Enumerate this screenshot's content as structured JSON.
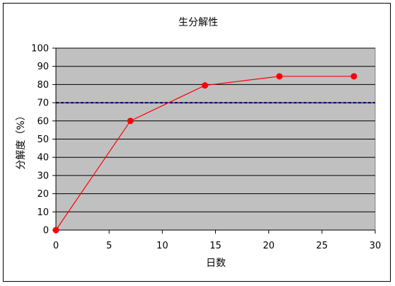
{
  "chart_data": {
    "type": "line",
    "title": "生分解性",
    "xlabel": "日数",
    "ylabel": "分解度（%）",
    "xlim": [
      0,
      30
    ],
    "ylim": [
      0,
      100
    ],
    "x_ticks": [
      0,
      5,
      10,
      15,
      20,
      25,
      30
    ],
    "y_ticks": [
      0,
      10,
      20,
      30,
      40,
      50,
      60,
      70,
      80,
      90,
      100
    ],
    "grid": true,
    "legend": "none",
    "plot_background": "#c0c0c0",
    "series": [
      {
        "x": [
          0,
          7,
          14,
          21,
          28
        ],
        "y": [
          0,
          60,
          79.5,
          84.5,
          84.5
        ],
        "color": "#ff0000"
      }
    ],
    "reference_line": {
      "y": 70,
      "color": "#000080",
      "style": "dashed"
    }
  }
}
